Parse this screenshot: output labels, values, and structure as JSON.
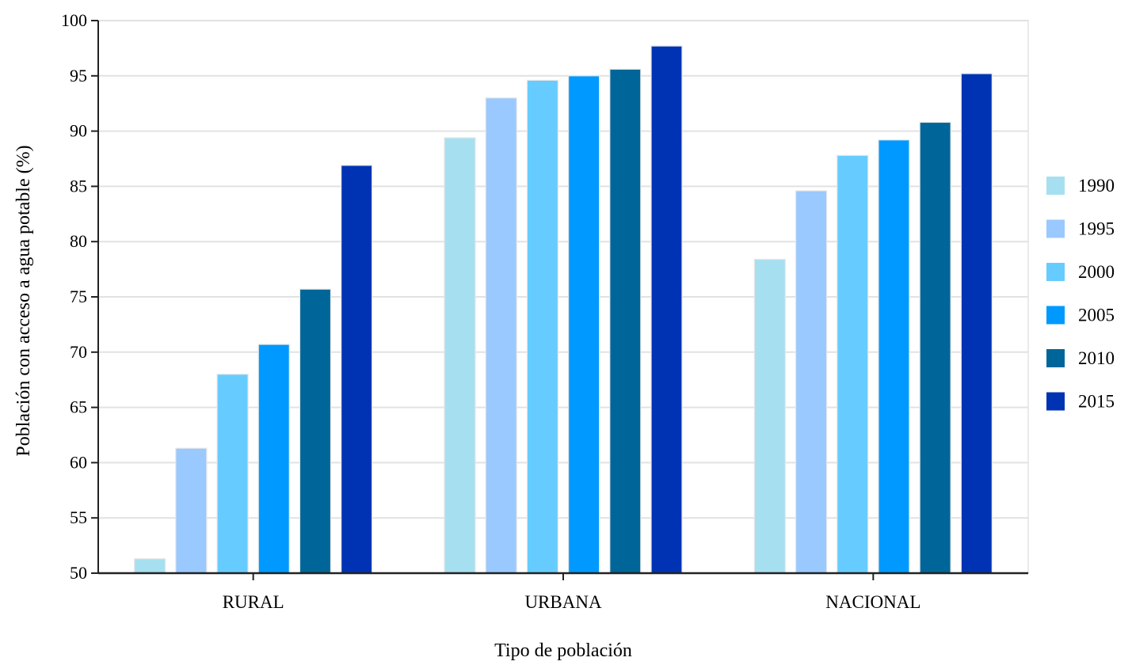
{
  "chart_data": {
    "type": "bar",
    "title": "",
    "xlabel": "Tipo de población",
    "ylabel": "Población con acceso a agua potable (%)",
    "ylim": [
      50,
      100
    ],
    "yticks": [
      50,
      55,
      60,
      65,
      70,
      75,
      80,
      85,
      90,
      95,
      100
    ],
    "grid": true,
    "legend_position": "right",
    "categories": [
      "RURAL",
      "URBANA",
      "NACIONAL"
    ],
    "series": [
      {
        "name": "1990",
        "color": "#a6e0f0",
        "values": [
          51.3,
          89.4,
          78.4
        ]
      },
      {
        "name": "1995",
        "color": "#99c9ff",
        "values": [
          61.3,
          93.0,
          84.6
        ]
      },
      {
        "name": "2000",
        "color": "#66ccff",
        "values": [
          68.0,
          94.6,
          87.8
        ]
      },
      {
        "name": "2005",
        "color": "#0099ff",
        "values": [
          70.7,
          95.0,
          89.2
        ]
      },
      {
        "name": "2010",
        "color": "#006699",
        "values": [
          75.7,
          95.6,
          90.8
        ]
      },
      {
        "name": "2015",
        "color": "#0033b3",
        "values": [
          86.9,
          97.7,
          95.2
        ]
      }
    ]
  }
}
